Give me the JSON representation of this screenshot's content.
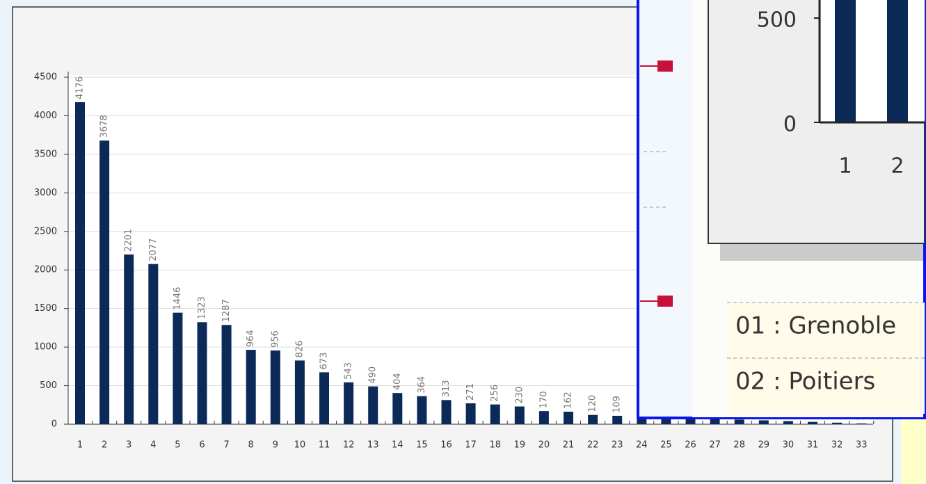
{
  "chart_data": {
    "type": "bar",
    "categories": [
      1,
      2,
      3,
      4,
      5,
      6,
      7,
      8,
      9,
      10,
      11,
      12,
      13,
      14,
      15,
      16,
      17,
      18,
      19,
      20,
      21,
      22,
      23,
      24,
      25,
      26,
      27,
      28,
      29,
      30,
      31,
      32,
      33
    ],
    "values": [
      4176,
      3678,
      2201,
      2077,
      1446,
      1323,
      1287,
      964,
      956,
      826,
      673,
      543,
      490,
      404,
      364,
      313,
      271,
      256,
      230,
      170,
      162,
      120,
      109,
      100,
      90,
      80,
      70,
      60,
      50,
      40,
      30,
      20,
      10
    ],
    "color": "#0b2a58",
    "ylim": [
      0,
      4500
    ],
    "yticks": [
      0,
      500,
      1000,
      1500,
      2000,
      2500,
      3000,
      3500,
      4000,
      4500
    ],
    "grid": true
  },
  "zoom_inset": {
    "yticks": [
      0,
      500
    ],
    "categories": [
      1,
      2
    ],
    "list": [
      "01 : Grenoble",
      "02 : Poitiers"
    ]
  }
}
